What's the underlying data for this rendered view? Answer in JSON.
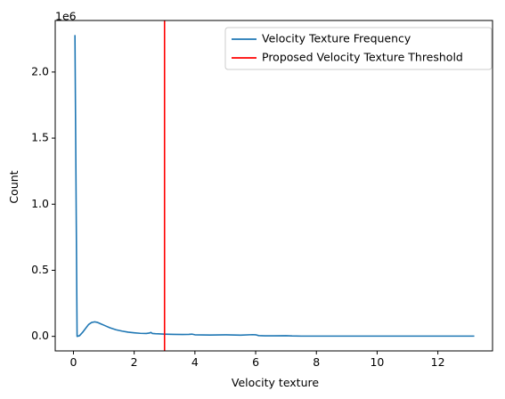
{
  "chart_data": {
    "type": "line",
    "xlabel": "Velocity texture",
    "ylabel": "Count",
    "y_offset_label": "1e6",
    "xlim": [
      -0.6,
      13.8
    ],
    "ylim": [
      -0.11,
      2.39
    ],
    "x_ticks": [
      0,
      2,
      4,
      6,
      8,
      10,
      12
    ],
    "x_tick_labels": [
      "0",
      "2",
      "4",
      "6",
      "8",
      "10",
      "12"
    ],
    "y_ticks": [
      0.0,
      0.5,
      1.0,
      1.5,
      2.0
    ],
    "y_tick_labels": [
      "0.0",
      "0.5",
      "1.0",
      "1.5",
      "2.0"
    ],
    "grid": false,
    "legend_position": "top-right",
    "series": [
      {
        "name": "Velocity Texture Frequency",
        "color": "#1f77b4",
        "x": [
          0.05,
          0.12,
          0.2,
          0.3,
          0.4,
          0.5,
          0.6,
          0.7,
          0.8,
          0.9,
          1.0,
          1.1,
          1.2,
          1.4,
          1.6,
          1.8,
          2.0,
          2.2,
          2.4,
          2.5,
          2.55,
          2.6,
          2.7,
          2.8,
          3.0,
          3.3,
          3.6,
          3.8,
          3.9,
          4.0,
          4.5,
          5.0,
          5.5,
          5.9,
          6.0,
          6.1,
          6.3,
          6.6,
          7.0,
          7.2,
          7.5,
          8.0,
          9.0,
          10.0,
          11.0,
          12.0,
          13.2
        ],
        "y": [
          2.28,
          0.0,
          0.005,
          0.03,
          0.06,
          0.09,
          0.105,
          0.11,
          0.105,
          0.095,
          0.085,
          0.075,
          0.065,
          0.05,
          0.04,
          0.032,
          0.027,
          0.023,
          0.022,
          0.025,
          0.03,
          0.022,
          0.02,
          0.019,
          0.017,
          0.015,
          0.014,
          0.015,
          0.017,
          0.012,
          0.01,
          0.012,
          0.009,
          0.013,
          0.012,
          0.006,
          0.004,
          0.004,
          0.005,
          0.003,
          0.002,
          0.002,
          0.002,
          0.002,
          0.002,
          0.002,
          0.002
        ]
      },
      {
        "name": "Proposed Velocity Texture Threshold",
        "color": "#ff0000",
        "type": "vline",
        "x_value": 3.0
      }
    ]
  }
}
